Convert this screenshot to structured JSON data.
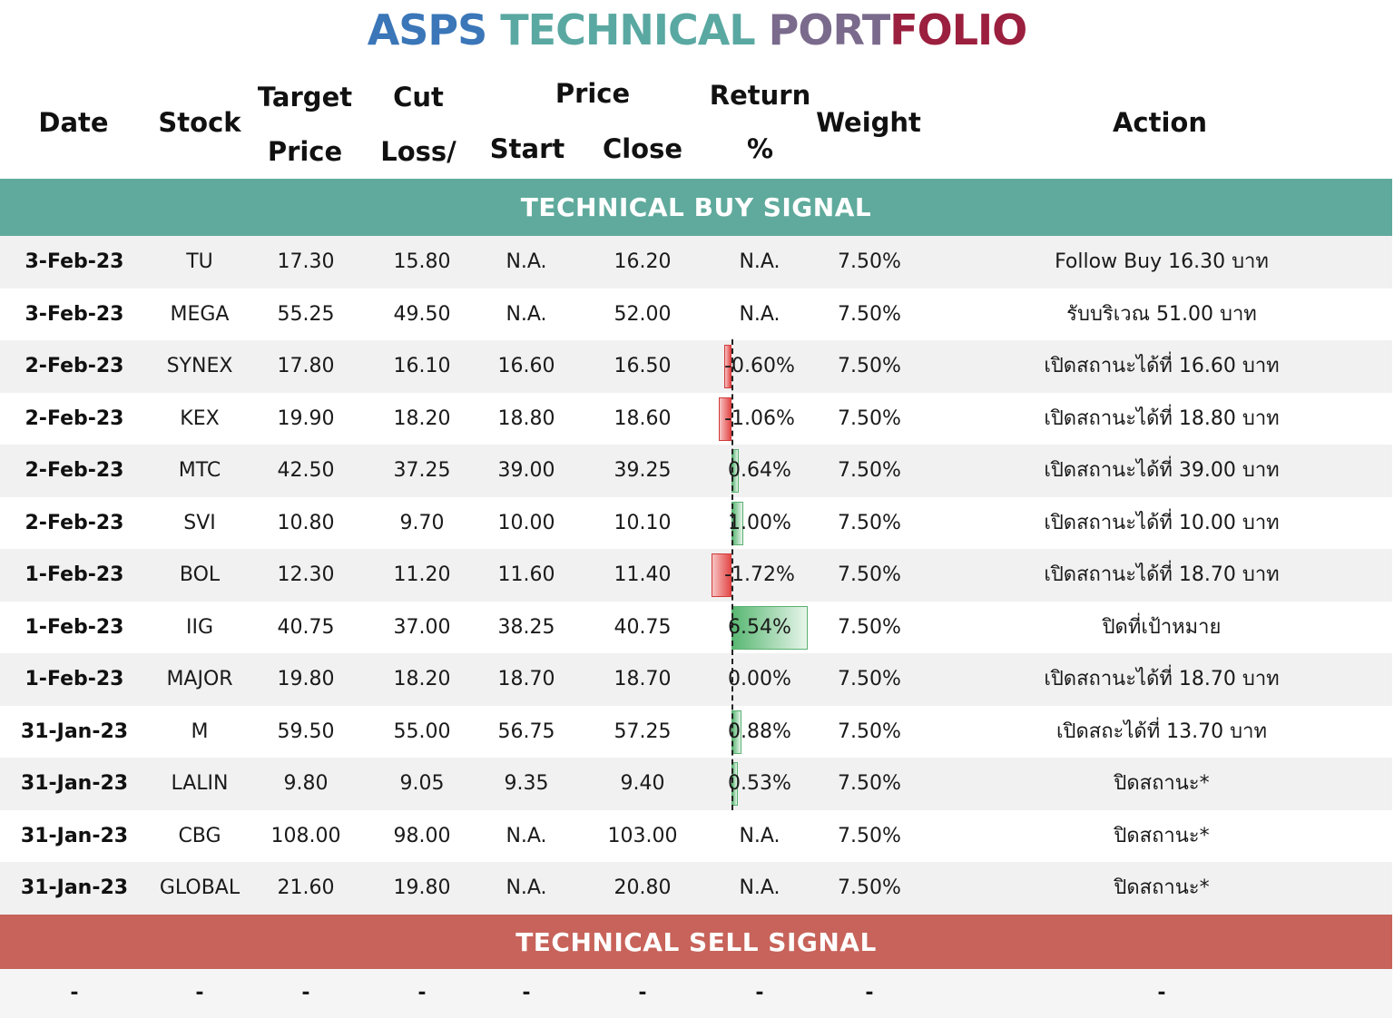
{
  "title": {
    "part1": "ASPS",
    "part2": "TECHNICAL",
    "part3a": "PORT",
    "part3b": "FOLIO"
  },
  "headers": {
    "date": "Date",
    "stock": "Stock",
    "target_1": "Target",
    "target_2": "Price",
    "cut_1": "Cut",
    "cut_2": "Loss/",
    "price": "Price",
    "start": "Start",
    "close": "Close",
    "return_1": "Return",
    "return_2": "%",
    "weight": "Weight",
    "action": "Action"
  },
  "buy_signal_label": "TECHNICAL BUY SIGNAL",
  "sell_signal_label": "TECHNICAL SELL SIGNAL",
  "colors": {
    "buy_band": "#5faa9c",
    "sell_band": "#c7635a",
    "negative_bar": "#e34848",
    "positive_bar": "#58b772"
  },
  "rows": [
    {
      "date": "3-Feb-23",
      "stock": "TU",
      "target": "17.30",
      "cut": "15.80",
      "start": "N.A.",
      "close": "16.20",
      "ret": "N.A.",
      "ret_value": null,
      "weight": "7.50%",
      "action": "Follow Buy 16.30 บาท"
    },
    {
      "date": "3-Feb-23",
      "stock": "MEGA",
      "target": "55.25",
      "cut": "49.50",
      "start": "N.A.",
      "close": "52.00",
      "ret": "N.A.",
      "ret_value": null,
      "weight": "7.50%",
      "action": "รับบริเวณ 51.00 บาท"
    },
    {
      "date": "2-Feb-23",
      "stock": "SYNEX",
      "target": "17.80",
      "cut": "16.10",
      "start": "16.60",
      "close": "16.50",
      "ret": "-0.60%",
      "ret_value": -0.6,
      "weight": "7.50%",
      "action": "เปิดสถานะได้ที่ 16.60 บาท"
    },
    {
      "date": "2-Feb-23",
      "stock": "KEX",
      "target": "19.90",
      "cut": "18.20",
      "start": "18.80",
      "close": "18.60",
      "ret": "-1.06%",
      "ret_value": -1.06,
      "weight": "7.50%",
      "action": "เปิดสถานะได้ที่ 18.80 บาท"
    },
    {
      "date": "2-Feb-23",
      "stock": "MTC",
      "target": "42.50",
      "cut": "37.25",
      "start": "39.00",
      "close": "39.25",
      "ret": "0.64%",
      "ret_value": 0.64,
      "weight": "7.50%",
      "action": "เปิดสถานะได้ที่ 39.00 บาท"
    },
    {
      "date": "2-Feb-23",
      "stock": "SVI",
      "target": "10.80",
      "cut": "9.70",
      "start": "10.00",
      "close": "10.10",
      "ret": "1.00%",
      "ret_value": 1.0,
      "weight": "7.50%",
      "action": "เปิดสถานะได้ที่ 10.00 บาท"
    },
    {
      "date": "1-Feb-23",
      "stock": "BOL",
      "target": "12.30",
      "cut": "11.20",
      "start": "11.60",
      "close": "11.40",
      "ret": "-1.72%",
      "ret_value": -1.72,
      "weight": "7.50%",
      "action": "เปิดสถานะได้ที่ 18.70 บาท"
    },
    {
      "date": "1-Feb-23",
      "stock": "IIG",
      "target": "40.75",
      "cut": "37.00",
      "start": "38.25",
      "close": "40.75",
      "ret": "6.54%",
      "ret_value": 6.54,
      "weight": "7.50%",
      "action": "ปิดที่เป้าหมาย"
    },
    {
      "date": "1-Feb-23",
      "stock": "MAJOR",
      "target": "19.80",
      "cut": "18.20",
      "start": "18.70",
      "close": "18.70",
      "ret": "0.00%",
      "ret_value": 0.0,
      "weight": "7.50%",
      "action": "เปิดสถานะได้ที่ 18.70 บาท"
    },
    {
      "date": "31-Jan-23",
      "stock": "M",
      "target": "59.50",
      "cut": "55.00",
      "start": "56.75",
      "close": "57.25",
      "ret": "0.88%",
      "ret_value": 0.88,
      "weight": "7.50%",
      "action": "เปิดสถะได้ที่ 13.70 บาท"
    },
    {
      "date": "31-Jan-23",
      "stock": "LALIN",
      "target": "9.80",
      "cut": "9.05",
      "start": "9.35",
      "close": "9.40",
      "ret": "0.53%",
      "ret_value": 0.53,
      "weight": "7.50%",
      "action": "ปิดสถานะ*"
    },
    {
      "date": "31-Jan-23",
      "stock": "CBG",
      "target": "108.00",
      "cut": "98.00",
      "start": "N.A.",
      "close": "103.00",
      "ret": "N.A.",
      "ret_value": null,
      "weight": "7.50%",
      "action": "ปิดสถานะ*"
    },
    {
      "date": "31-Jan-23",
      "stock": "GLOBAL",
      "target": "21.60",
      "cut": "19.80",
      "start": "N.A.",
      "close": "20.80",
      "ret": "N.A.",
      "ret_value": null,
      "weight": "7.50%",
      "action": "ปิดสถานะ*"
    }
  ],
  "sell_row": {
    "date": "-",
    "stock": "-",
    "target": "-",
    "cut": "-",
    "start": "-",
    "close": "-",
    "ret": "-",
    "weight": "-",
    "action": "-"
  }
}
